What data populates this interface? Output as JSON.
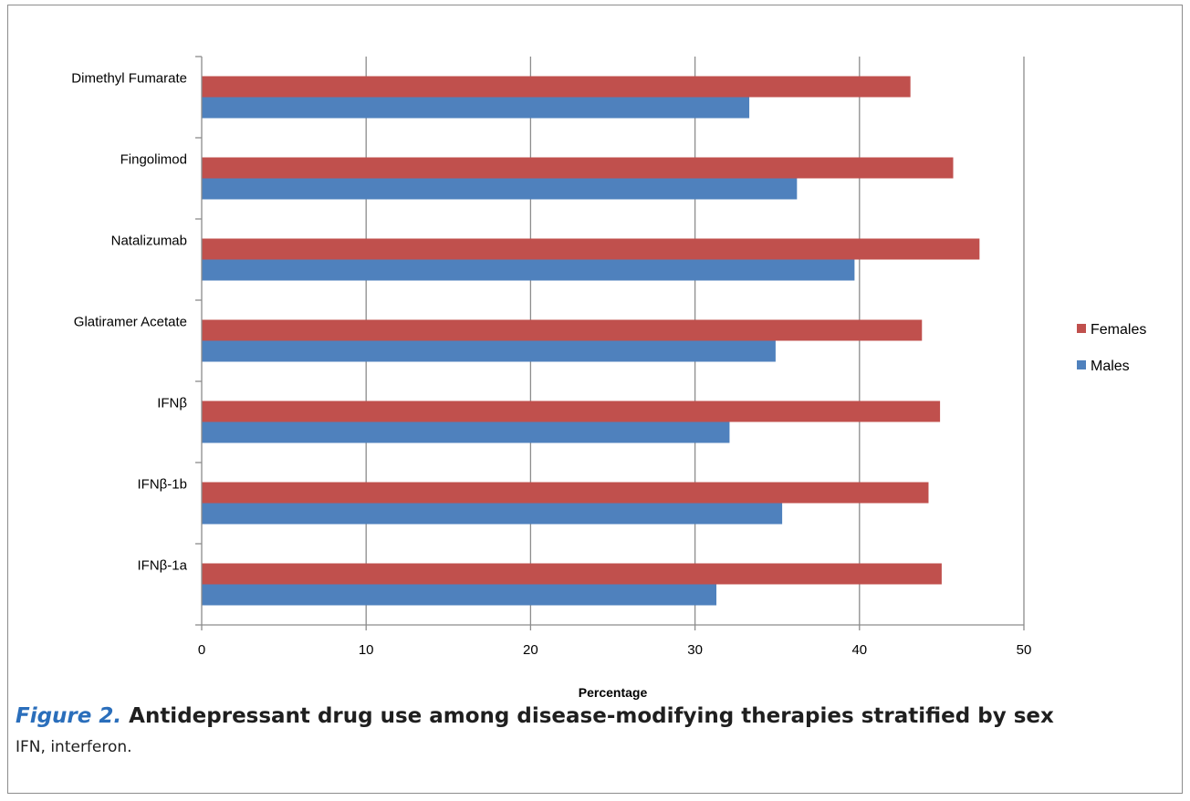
{
  "chart_data": {
    "type": "bar",
    "orientation": "horizontal",
    "categories": [
      "Dimethyl Fumarate",
      "Fingolimod",
      "Natalizumab",
      "Glatiramer Acetate",
      "IFNβ",
      "IFNβ-1b",
      "IFNβ-1a"
    ],
    "series": [
      {
        "name": "Females",
        "color": "#c0504d",
        "values": [
          43.1,
          45.7,
          47.3,
          43.8,
          44.9,
          44.2,
          45.0
        ]
      },
      {
        "name": "Males",
        "color": "#4f81bd",
        "values": [
          33.3,
          36.2,
          39.7,
          34.9,
          32.1,
          35.3,
          31.3
        ]
      }
    ],
    "xlabel": "Percentage",
    "xlim": [
      0,
      50
    ],
    "xticks": [
      "0",
      "10",
      "20",
      "30",
      "40",
      "50"
    ],
    "grid": "vertical",
    "legend": "right"
  },
  "caption": {
    "figure_label": "Figure 2.",
    "title": "Antidepressant drug use among disease-modifying therapies stratified by sex",
    "footnote": "IFN, interferon."
  }
}
